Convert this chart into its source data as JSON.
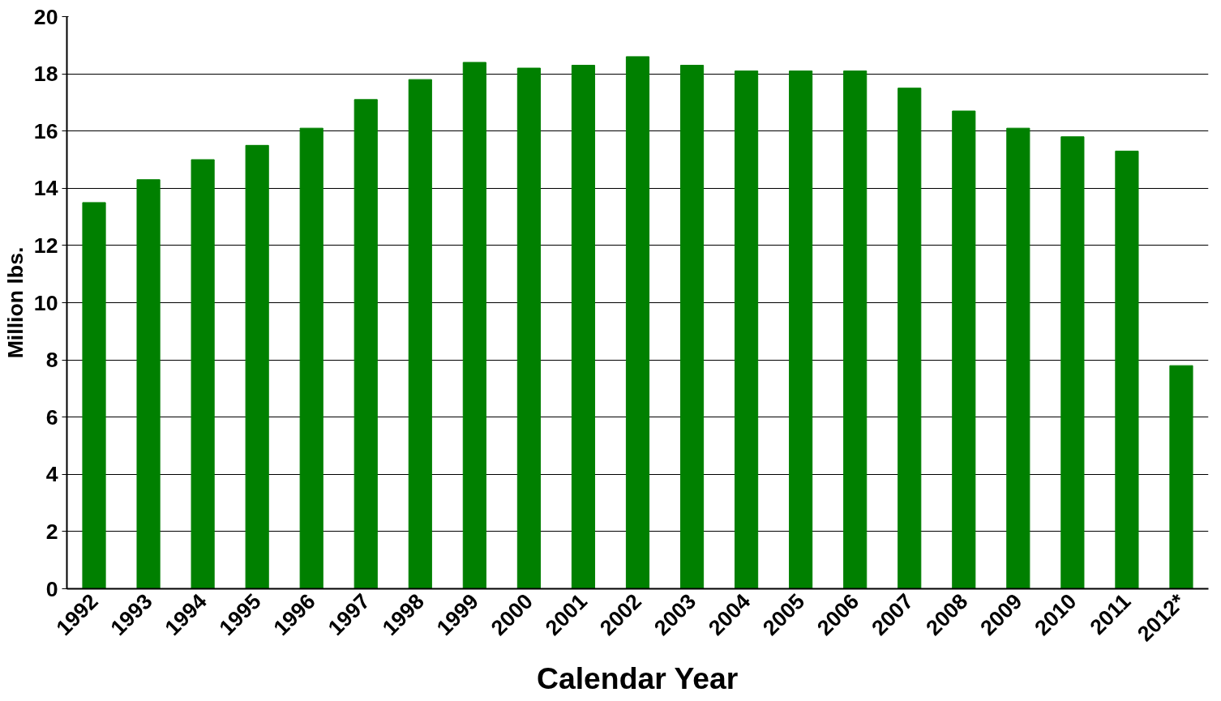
{
  "chart_data": {
    "type": "bar",
    "xlabel": "Calendar Year",
    "ylabel": "Million lbs.",
    "categories": [
      "1992",
      "1993",
      "1994",
      "1995",
      "1996",
      "1997",
      "1998",
      "1999",
      "2000",
      "2001",
      "2002",
      "2003",
      "2004",
      "2005",
      "2006",
      "2007",
      "2008",
      "2009",
      "2010",
      "2011",
      "2012*"
    ],
    "values": [
      13.5,
      14.3,
      15.0,
      15.5,
      16.1,
      17.1,
      17.8,
      18.4,
      18.2,
      18.3,
      18.6,
      18.3,
      18.1,
      18.1,
      18.1,
      17.5,
      16.7,
      16.1,
      15.8,
      15.3,
      7.8
    ],
    "color": "#008000",
    "ylim": [
      0,
      20
    ],
    "yticks": [
      0,
      2,
      4,
      6,
      8,
      10,
      12,
      14,
      16,
      18,
      20
    ],
    "grid": "y"
  }
}
